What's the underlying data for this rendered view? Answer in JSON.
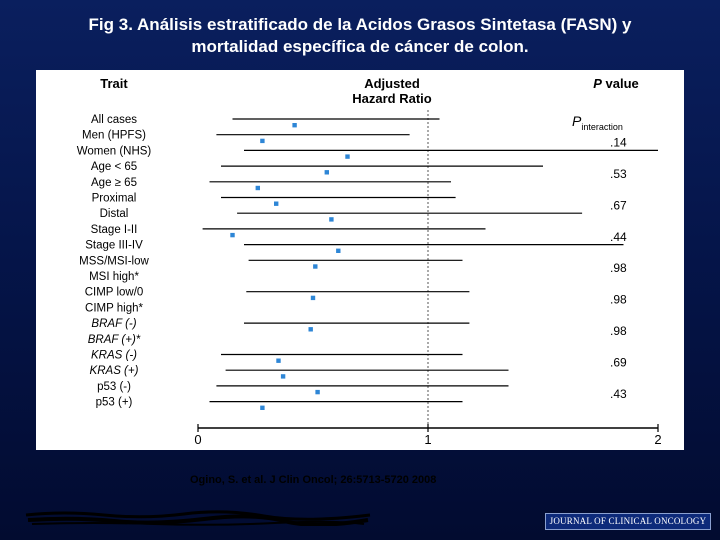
{
  "slide": {
    "title_line1": "Fig 3. Análisis estratificado de la  Acidos Grasos Sintetasa (FASN) y",
    "title_line2": "mortalidad específica de cáncer de colon.",
    "citation": "Ogino, S. et al. J Clin Oncol; 26:5713-5720 2008",
    "journal_logo": "JOURNAL OF CLINICAL ONCOLOGY"
  },
  "colors": {
    "background": "#05154a",
    "point": "#2e86d6",
    "line": "#000000",
    "reference": "#555555"
  },
  "chart_data": {
    "type": "forest",
    "header": {
      "trait": "Trait",
      "hr_line1": "Adjusted",
      "hr_line2": "Hazard Ratio",
      "p_value_italic": "P",
      "p_value_rest": " value",
      "p_interaction_italic": "P",
      "p_interaction_sub": "interaction"
    },
    "x_ticks": [
      "0",
      "1",
      "2"
    ],
    "xlim": [
      0,
      2
    ],
    "reference_line": 1,
    "rows": [
      {
        "label": "All cases",
        "hr": 0.42,
        "ci": [
          0.15,
          1.05
        ],
        "italic": false
      },
      {
        "label": "Men (HPFS)",
        "hr": 0.28,
        "ci": [
          0.08,
          0.92
        ],
        "italic": false
      },
      {
        "label": "Women (NHS)",
        "hr": 0.65,
        "ci": [
          0.2,
          2.0
        ],
        "italic": false
      },
      {
        "label": "Age < 65",
        "hr": 0.56,
        "ci": [
          0.1,
          1.5
        ],
        "italic": false
      },
      {
        "label": "Age ≥ 65",
        "hr": 0.26,
        "ci": [
          0.05,
          1.1
        ],
        "italic": false
      },
      {
        "label": "Proximal",
        "hr": 0.34,
        "ci": [
          0.1,
          1.12
        ],
        "italic": false
      },
      {
        "label": "Distal",
        "hr": 0.58,
        "ci": [
          0.17,
          1.67
        ],
        "italic": false
      },
      {
        "label": "Stage I-II",
        "hr": 0.15,
        "ci": [
          0.02,
          1.25
        ],
        "italic": false
      },
      {
        "label": "Stage III-IV",
        "hr": 0.61,
        "ci": [
          0.2,
          1.85
        ],
        "italic": false
      },
      {
        "label": "MSS/MSI-low",
        "hr": 0.51,
        "ci": [
          0.22,
          1.15
        ],
        "italic": false
      },
      {
        "label": "MSI high*",
        "hr": null,
        "ci": null,
        "italic": false
      },
      {
        "label": "CIMP low/0",
        "hr": 0.5,
        "ci": [
          0.21,
          1.18
        ],
        "italic": false
      },
      {
        "label": "CIMP high*",
        "hr": null,
        "ci": null,
        "italic": false
      },
      {
        "label": "BRAF (-)",
        "hr": 0.49,
        "ci": [
          0.2,
          1.18
        ],
        "italic": true
      },
      {
        "label": "BRAF (+)*",
        "hr": null,
        "ci": null,
        "italic": true
      },
      {
        "label": "KRAS (-)",
        "hr": 0.35,
        "ci": [
          0.1,
          1.15
        ],
        "italic": true
      },
      {
        "label": "KRAS (+)",
        "hr": 0.37,
        "ci": [
          0.12,
          1.35
        ],
        "italic": true
      },
      {
        "label": "p53 (-)",
        "hr": 0.52,
        "ci": [
          0.08,
          1.35
        ],
        "italic": false
      },
      {
        "label": "p53 (+)",
        "hr": 0.28,
        "ci": [
          0.05,
          1.15
        ],
        "italic": false
      }
    ],
    "p_values": [
      ".14",
      ".53",
      ".67",
      ".44",
      ".98",
      ".98",
      ".98",
      ".69",
      ".43"
    ],
    "grid": false
  }
}
